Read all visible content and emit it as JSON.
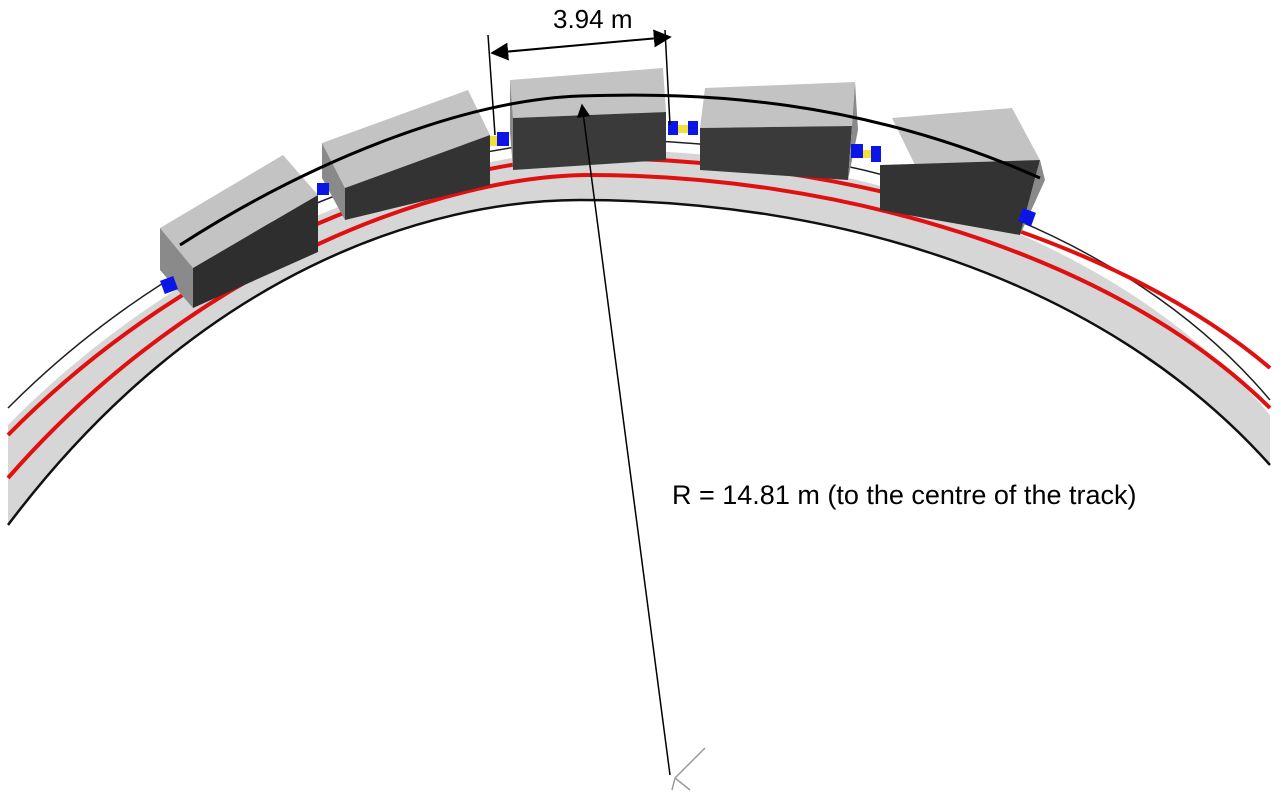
{
  "annotations": {
    "car_width": "3.94 m",
    "radius": "R = 14.81 m (to the centre of the track)"
  },
  "colors": {
    "background": "#ffffff",
    "track_bed": "#d6d6d6",
    "track_edge": "#101010",
    "rail": "#e01010",
    "car_top": "#c3c3c3",
    "car_front": "#373737",
    "car_side": "#8a8a8a",
    "coupler": "#0b16e6",
    "coupler_link": "#f2e13a",
    "dimension_line": "#000000"
  }
}
